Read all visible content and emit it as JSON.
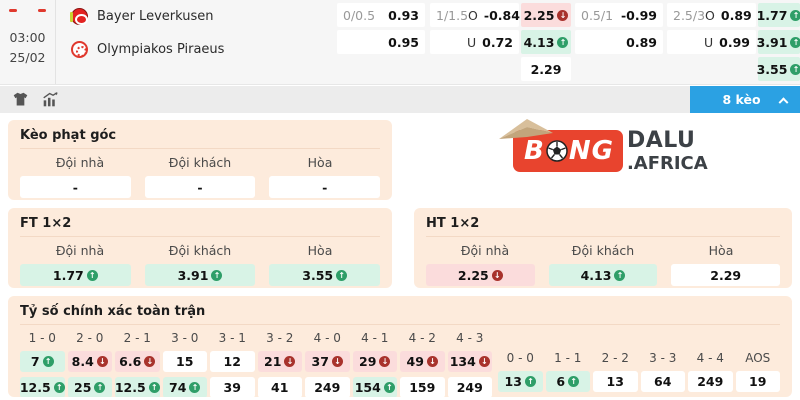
{
  "colors": {
    "accent_blue": "#2ba1e3",
    "up_green": "#2e9e68",
    "down_red": "#a8322c",
    "cell_green": "#d8f3e6",
    "cell_red": "#fbdcdc",
    "panel_peach": "#fdebdc",
    "brand_red": "#e8442e",
    "indicator_red": "#e0392e"
  },
  "match": {
    "time": "03:00",
    "date": "25/02",
    "home_team": "Bayer Leverkusen",
    "away_team": "Olympiakos Piraeus"
  },
  "top_odds": {
    "col1": {
      "r1": {
        "line": "0/0.5",
        "val": "0.93"
      },
      "r2": {
        "val": "0.95"
      }
    },
    "col2": {
      "r1": {
        "line": "1/1.5",
        "side": "O",
        "val": "-0.84"
      },
      "r2": {
        "side": "U",
        "val": "0.72"
      }
    },
    "col3": {
      "cells": [
        {
          "v": "2.25",
          "trend": "down",
          "hl": "red"
        },
        {
          "v": "4.13",
          "trend": "up",
          "hl": "green"
        },
        {
          "v": "2.29"
        }
      ]
    },
    "col4": {
      "r1": {
        "line": "0.5/1",
        "val": "-0.99"
      },
      "r2": {
        "val": "0.89"
      }
    },
    "col5": {
      "r1": {
        "line": "2.5/3",
        "side": "O",
        "val": "0.89"
      },
      "r2": {
        "side": "U",
        "val": "0.99"
      }
    },
    "col6": {
      "cells": [
        {
          "v": "1.77",
          "trend": "up",
          "hl": "green"
        },
        {
          "v": "3.91",
          "trend": "up",
          "hl": "green"
        },
        {
          "v": "3.55",
          "trend": "up",
          "hl": "green"
        }
      ]
    }
  },
  "toolbar": {
    "filter_button_label": "8 kèo",
    "icons": [
      "jersey-icon",
      "stats-chart-icon",
      "chevron-up-icon"
    ]
  },
  "panels": {
    "corner": {
      "title": "Kèo phạt góc",
      "headers": [
        "Đội nhà",
        "Đội khách",
        "Hòa"
      ],
      "cells": [
        {
          "v": "-"
        },
        {
          "v": "-"
        },
        {
          "v": "-"
        }
      ]
    },
    "ft": {
      "title": "FT 1×2",
      "headers": [
        "Đội nhà",
        "Đội khách",
        "Hòa"
      ],
      "cells": [
        {
          "v": "1.77",
          "trend": "up",
          "hl": "green"
        },
        {
          "v": "3.91",
          "trend": "up",
          "hl": "green"
        },
        {
          "v": "3.55",
          "trend": "up",
          "hl": "green"
        }
      ]
    },
    "ht": {
      "title": "HT 1×2",
      "headers": [
        "Đội nhà",
        "Đội khách",
        "Hòa"
      ],
      "cells": [
        {
          "v": "2.25",
          "trend": "down",
          "hl": "red"
        },
        {
          "v": "4.13",
          "trend": "up",
          "hl": "green"
        },
        {
          "v": "2.29"
        }
      ]
    },
    "score": {
      "title": "Tỷ số chính xác toàn trận",
      "columns": [
        {
          "label": "1 - 0",
          "cells": [
            {
              "v": "7",
              "trend": "up",
              "hl": "green"
            },
            {
              "v": "12.5",
              "trend": "up",
              "hl": "green"
            }
          ]
        },
        {
          "label": "2 - 0",
          "cells": [
            {
              "v": "8.4",
              "trend": "down",
              "hl": "red"
            },
            {
              "v": "25",
              "trend": "up",
              "hl": "green"
            }
          ]
        },
        {
          "label": "2 - 1",
          "cells": [
            {
              "v": "6.6",
              "trend": "down",
              "hl": "red"
            },
            {
              "v": "12.5",
              "trend": "up",
              "hl": "green"
            }
          ]
        },
        {
          "label": "3 - 0",
          "cells": [
            {
              "v": "15"
            },
            {
              "v": "74",
              "trend": "up",
              "hl": "green"
            }
          ]
        },
        {
          "label": "3 - 1",
          "cells": [
            {
              "v": "12"
            },
            {
              "v": "39"
            }
          ]
        },
        {
          "label": "3 - 2",
          "cells": [
            {
              "v": "21",
              "trend": "down",
              "hl": "red"
            },
            {
              "v": "41"
            }
          ]
        },
        {
          "label": "4 - 0",
          "cells": [
            {
              "v": "37",
              "trend": "down",
              "hl": "red"
            },
            {
              "v": "249"
            }
          ]
        },
        {
          "label": "4 - 1",
          "cells": [
            {
              "v": "29",
              "trend": "down",
              "hl": "red"
            },
            {
              "v": "154",
              "trend": "up",
              "hl": "green"
            }
          ]
        },
        {
          "label": "4 - 2",
          "cells": [
            {
              "v": "49",
              "trend": "down",
              "hl": "red"
            },
            {
              "v": "159"
            }
          ]
        },
        {
          "label": "4 - 3",
          "cells": [
            {
              "v": "134",
              "trend": "down",
              "hl": "red"
            },
            {
              "v": "249"
            }
          ]
        }
      ],
      "draw_columns": [
        {
          "label": "0 - 0",
          "cells": [
            {
              "v": "13",
              "trend": "up",
              "hl": "green"
            }
          ]
        },
        {
          "label": "1 - 1",
          "cells": [
            {
              "v": "6",
              "trend": "up",
              "hl": "green"
            }
          ]
        },
        {
          "label": "2 - 2",
          "cells": [
            {
              "v": "13"
            }
          ]
        },
        {
          "label": "3 - 3",
          "cells": [
            {
              "v": "64"
            }
          ]
        },
        {
          "label": "4 - 4",
          "cells": [
            {
              "v": "249"
            }
          ]
        },
        {
          "label": "AOS",
          "cells": [
            {
              "v": "19"
            }
          ]
        }
      ]
    }
  },
  "brand": {
    "word_red": "BONG",
    "word_red_pre": "B",
    "word_red_post": "NG",
    "word_dark1": "DALU",
    "word_dark2": ".AFRICA"
  }
}
